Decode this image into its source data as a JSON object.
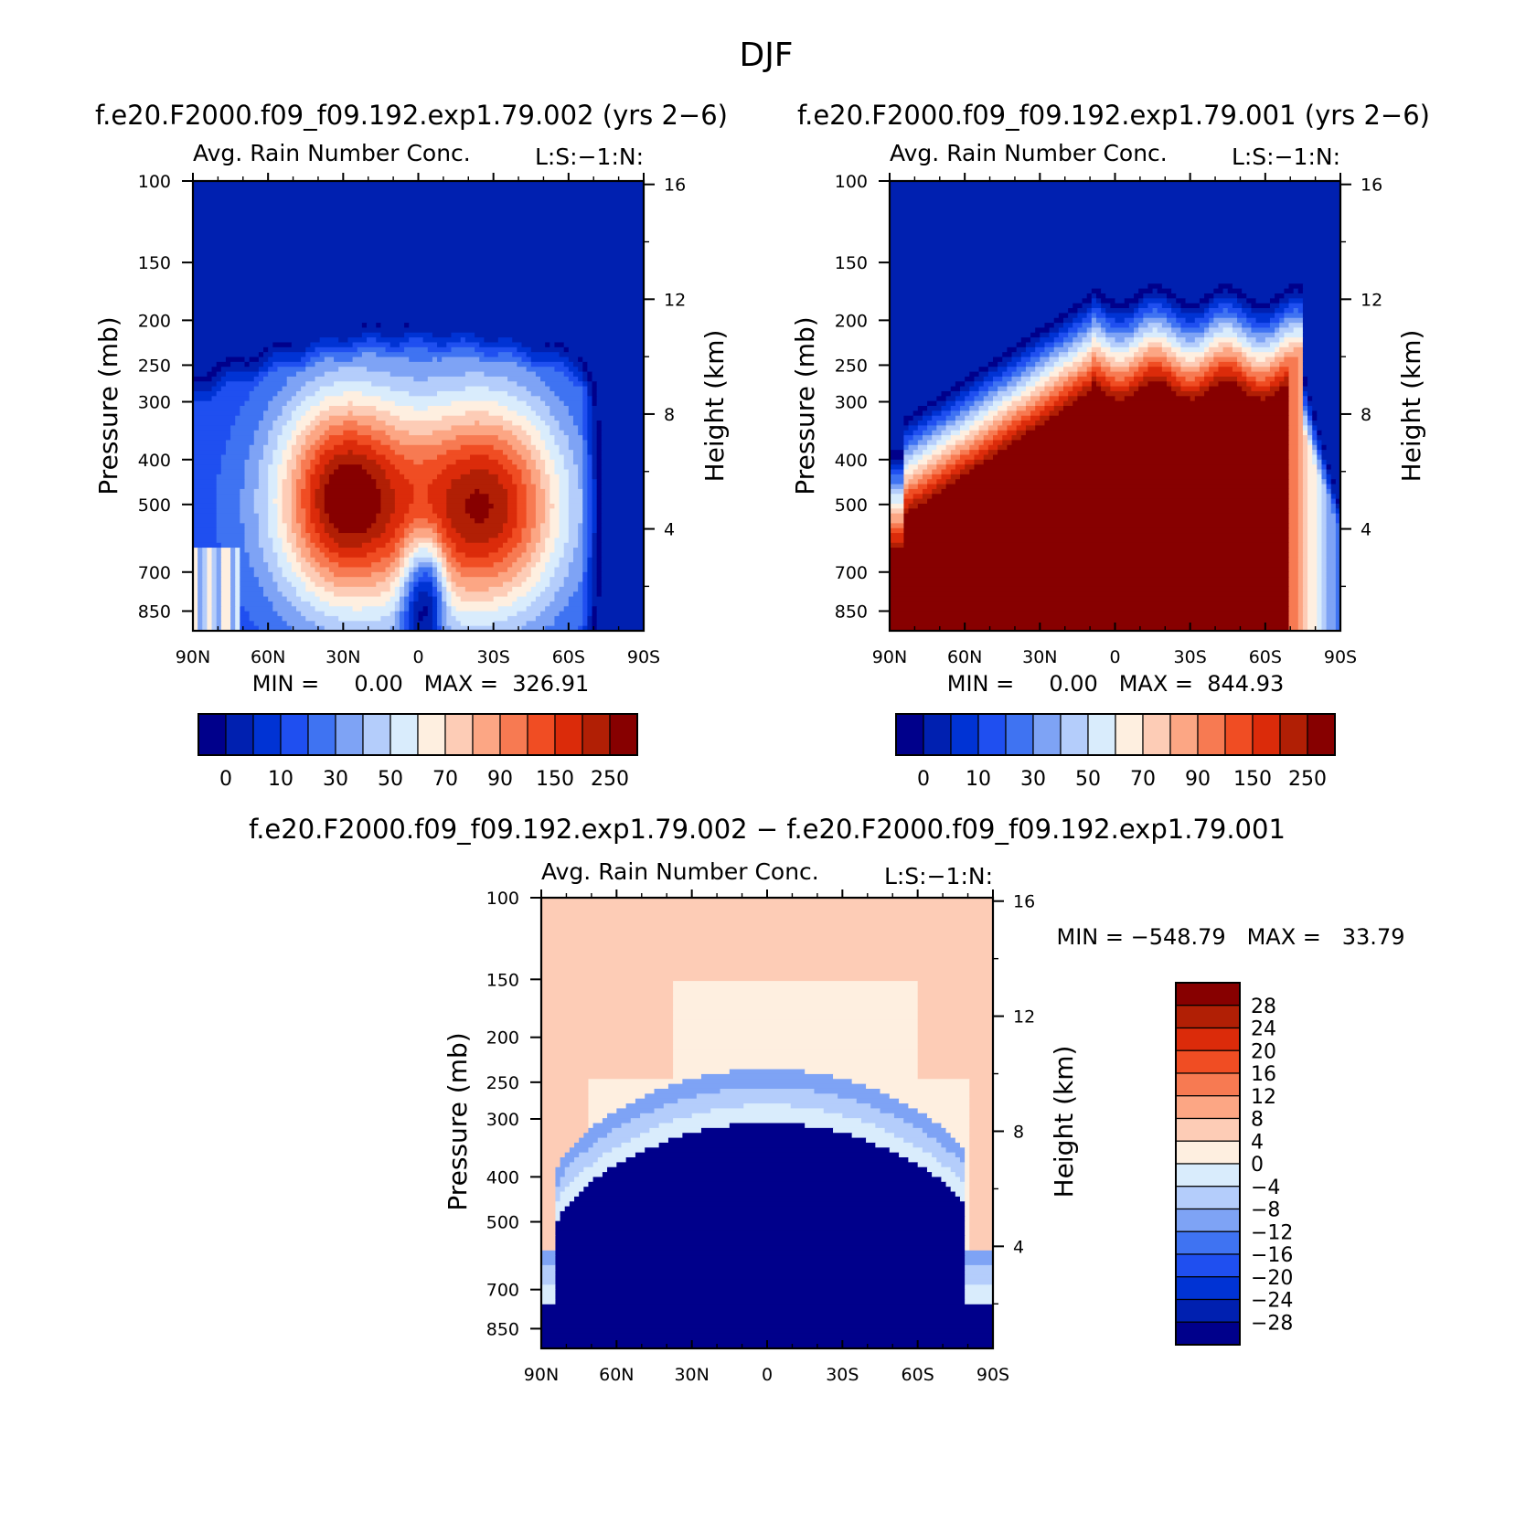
{
  "figure": {
    "title": "DJF",
    "diff_header": "f.e20.F2000.f09_f09.192.exp1.79.002 − f.e20.F2000.f09_f09.192.exp1.79.001"
  },
  "colors": {
    "abs_palette": [
      "#00008b",
      "#0020b0",
      "#0033d4",
      "#1f4ff0",
      "#3f73f2",
      "#7ea3f5",
      "#b4cdfb",
      "#d9ecfc",
      "#feefe0",
      "#fdccb6",
      "#fca684",
      "#f77a52",
      "#f04d23",
      "#db2b0a",
      "#b11f05",
      "#870000"
    ],
    "diff_palette": [
      "#00008b",
      "#0020b0",
      "#0033d4",
      "#1f4ff0",
      "#3f73f2",
      "#7ea3f5",
      "#b4cdfb",
      "#d9ecfc",
      "#feefe0",
      "#fdccb6",
      "#fca684",
      "#f77a52",
      "#f04d23",
      "#db2b0a",
      "#b11f05",
      "#870000"
    ]
  },
  "chart_data": [
    {
      "type": "heatmap",
      "header": "f.e20.F2000.f09_f09.192.exp1.79.002 (yrs 2−6)",
      "title": "Avg. Rain Number Conc.",
      "right_title": "L:S:−1:N:",
      "ylabel": "Pressure (mb)",
      "y2label": "Height (km)",
      "x_ticks": [
        "90N",
        "60N",
        "30N",
        "0",
        "30S",
        "60S",
        "90S"
      ],
      "y_ticks": [
        "100",
        "150",
        "200",
        "250",
        "300",
        "400",
        "500",
        "700",
        "850"
      ],
      "y2_ticks": [
        "16",
        "12",
        "8",
        "4"
      ],
      "min_max": "MIN =     0.00   MAX =  326.91",
      "colorbar_labels": [
        "0",
        "10",
        "30",
        "50",
        "70",
        "90",
        "150",
        "250"
      ],
      "colorbar_orientation": "horizontal",
      "pattern": "two-lobe"
    },
    {
      "type": "heatmap",
      "header": "f.e20.F2000.f09_f09.192.exp1.79.001 (yrs 2−6)",
      "title": "Avg. Rain Number Conc.",
      "right_title": "L:S:−1:N:",
      "ylabel": "Pressure (mb)",
      "y2label": "Height (km)",
      "x_ticks": [
        "90N",
        "60N",
        "30N",
        "0",
        "30S",
        "60S",
        "90S"
      ],
      "y_ticks": [
        "100",
        "150",
        "200",
        "250",
        "300",
        "400",
        "500",
        "700",
        "850"
      ],
      "y2_ticks": [
        "16",
        "12",
        "8",
        "4"
      ],
      "min_max": "MIN =     0.00   MAX =  844.93",
      "colorbar_labels": [
        "0",
        "10",
        "30",
        "50",
        "70",
        "90",
        "150",
        "250"
      ],
      "colorbar_orientation": "horizontal",
      "pattern": "dome"
    },
    {
      "type": "heatmap",
      "title": "Avg. Rain Number Conc.",
      "right_title": "L:S:−1:N:",
      "ylabel": "Pressure (mb)",
      "y2label": "Height (km)",
      "x_ticks": [
        "90N",
        "60N",
        "30N",
        "0",
        "30S",
        "60S",
        "90S"
      ],
      "y_ticks": [
        "100",
        "150",
        "200",
        "250",
        "300",
        "400",
        "500",
        "700",
        "850"
      ],
      "y2_ticks": [
        "16",
        "12",
        "8",
        "4"
      ],
      "min_max": "MIN = −548.79   MAX =   33.79",
      "colorbar_labels": [
        "28",
        "24",
        "20",
        "16",
        "12",
        "8",
        "4",
        "0",
        "−4",
        "−8",
        "−12",
        "−16",
        "−20",
        "−24",
        "−28"
      ],
      "colorbar_orientation": "vertical",
      "pattern": "difference"
    }
  ]
}
